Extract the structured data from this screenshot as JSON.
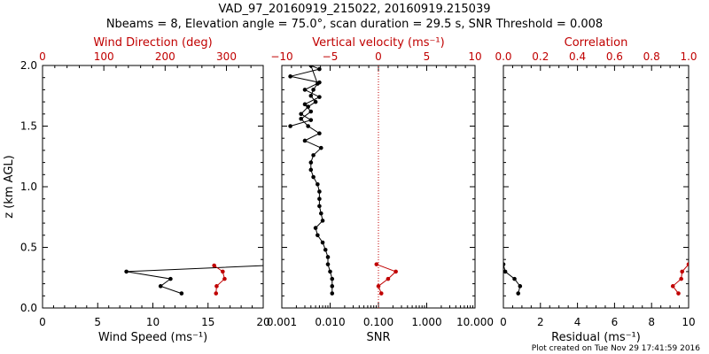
{
  "title_line1": "VAD_97_20160919_215022, 20160919.215039",
  "title_line2": "Nbeams = 8, Elevation angle = 75.0°, scan duration = 29.5 s, SNR Threshold = 0.008",
  "footer": "Plot created on Tue Nov 29 17:41:59 2016",
  "colors": {
    "black": "#000000",
    "red": "#c00000"
  },
  "chart_data": [
    {
      "type": "line",
      "panel": "wind",
      "ylabel": "z (km AGL)",
      "ylim": [
        0,
        2
      ],
      "y_ticks": [
        "0.0",
        "0.5",
        "1.0",
        "1.5",
        "2.0"
      ],
      "xlabel": "Wind Speed (ms⁻¹)",
      "xlim": [
        0,
        20
      ],
      "x_ticks": [
        "0",
        "5",
        "10",
        "15",
        "20"
      ],
      "top_xlabel": "Wind Direction (deg)",
      "top_xlim": [
        0,
        360
      ],
      "top_x_ticks": [
        "0",
        "100",
        "200",
        "300"
      ],
      "series": [
        {
          "name": "Wind Speed",
          "axis": "bottom",
          "color": "#000000",
          "x": [
            12.6,
            10.7,
            11.6,
            7.6,
            20.0
          ],
          "z": [
            0.12,
            0.18,
            0.24,
            0.3,
            0.35
          ],
          "markers": [
            true,
            true,
            true,
            true,
            false
          ]
        },
        {
          "name": "Wind Direction",
          "axis": "top",
          "color": "#c00000",
          "x": [
            283,
            284,
            297,
            294,
            280
          ],
          "z": [
            0.12,
            0.18,
            0.24,
            0.3,
            0.35
          ],
          "markers": [
            true,
            true,
            true,
            true,
            true
          ]
        }
      ]
    },
    {
      "type": "line",
      "panel": "snr",
      "xlabel": "SNR",
      "xscale": "log",
      "xlim": [
        0.001,
        10
      ],
      "x_ticks": [
        "0.001",
        "0.010",
        "0.100",
        "1.000",
        "10.000"
      ],
      "top_xlabel": "Vertical velocity (ms⁻¹)",
      "top_xlim": [
        -10,
        10
      ],
      "top_x_ticks": [
        "−10",
        "−5",
        "0",
        "5",
        "10"
      ],
      "reference_line": {
        "axis": "top",
        "value": 0,
        "style": "dotted"
      },
      "series": [
        {
          "name": "SNR",
          "axis": "bottom",
          "color": "#000000",
          "x": [
            0.011,
            0.011,
            0.011,
            0.01,
            0.009,
            0.009,
            0.008,
            0.007,
            0.0055,
            0.005,
            0.007,
            0.0065,
            0.006,
            0.006,
            0.006,
            0.0055,
            0.0045,
            0.004,
            0.004,
            0.0045,
            0.0065,
            0.003,
            0.006,
            0.0035,
            0.0025,
            0.004,
            0.003,
            0.006,
            0.003,
            0.006,
            0.0015,
            0.006,
            0.004,
            0.0055,
            0.0045,
            0.004,
            0.005,
            0.0035,
            0.0025,
            0.004,
            0.0015
          ],
          "z": [
            0.12,
            0.18,
            0.24,
            0.3,
            0.36,
            0.42,
            0.48,
            0.54,
            0.6,
            0.66,
            0.72,
            0.78,
            0.84,
            0.9,
            0.96,
            1.02,
            1.08,
            1.14,
            1.2,
            1.26,
            1.32,
            1.38,
            1.44,
            1.5,
            1.56,
            1.62,
            1.68,
            1.74,
            1.8,
            1.86,
            1.91,
            1.97,
            2.0,
            1.85,
            1.8,
            1.75,
            1.7,
            1.66,
            1.6,
            1.55,
            1.5
          ]
        },
        {
          "name": "Vertical velocity",
          "axis": "top",
          "color": "#c00000",
          "x": [
            0.3,
            0.0,
            1.0,
            1.8,
            -0.2
          ],
          "z": [
            0.12,
            0.18,
            0.24,
            0.3,
            0.36
          ]
        }
      ]
    },
    {
      "type": "line",
      "panel": "residual",
      "xlabel": "Residual (ms⁻¹)",
      "xlim": [
        0,
        10
      ],
      "x_ticks": [
        "0",
        "2",
        "4",
        "6",
        "8",
        "10"
      ],
      "top_xlabel": "Correlation",
      "top_xlim": [
        0,
        1
      ],
      "top_x_ticks": [
        "0.0",
        "0.2",
        "0.4",
        "0.6",
        "0.8",
        "1.0"
      ],
      "series": [
        {
          "name": "Residual",
          "axis": "bottom",
          "color": "#000000",
          "x": [
            0.8,
            0.9,
            0.6,
            0.1,
            0.0
          ],
          "z": [
            0.12,
            0.18,
            0.24,
            0.3,
            0.36
          ]
        },
        {
          "name": "Correlation",
          "axis": "top",
          "color": "#c00000",
          "x": [
            0.945,
            0.915,
            0.96,
            0.965,
            1.0
          ],
          "z": [
            0.12,
            0.18,
            0.24,
            0.3,
            0.36
          ]
        }
      ]
    }
  ]
}
